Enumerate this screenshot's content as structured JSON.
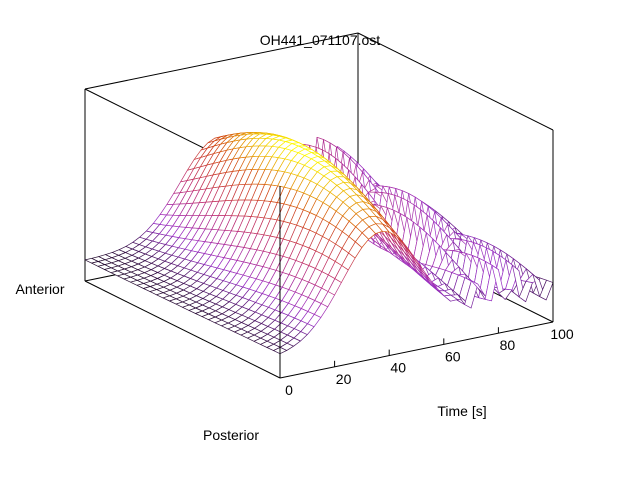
{
  "chart_data": {
    "type": "surface",
    "title": "OH441_071107.ost",
    "xlabel": "Time [s]",
    "ylabel_front": "Posterior",
    "ylabel_back": "Anterior",
    "xlim": [
      0,
      100
    ],
    "x_ticks": [
      "0",
      "20",
      "40",
      "60",
      "80",
      "100"
    ],
    "colormap": [
      "#000000",
      "#9a30c8",
      "#c0306e",
      "#d24a10",
      "#ffff00"
    ],
    "grid": false,
    "rows": 30,
    "cols": 40,
    "features": [
      {
        "name": "main_wave",
        "peak_time": 45,
        "peak_height": 1.0,
        "width_time": 20
      },
      {
        "name": "late_oscillation",
        "time_range": [
          70,
          100
        ],
        "height": 0.55
      }
    ],
    "baseline_height": 0.15
  }
}
